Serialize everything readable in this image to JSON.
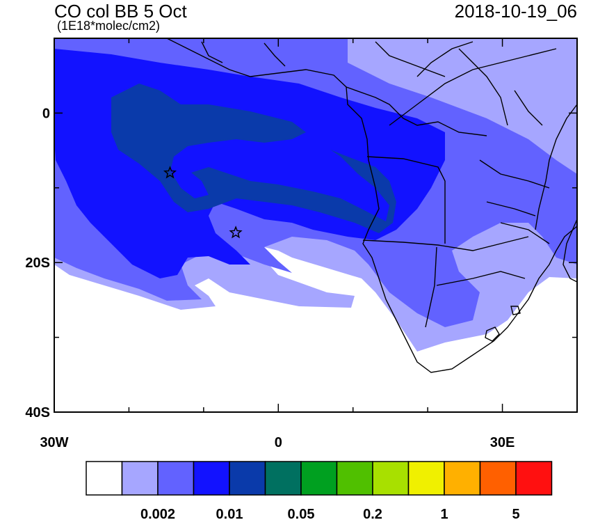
{
  "header": {
    "title": "CO col BB 5 Oct",
    "units": "(1E18*molec/cm2)",
    "timestamp": "2018-10-19_06"
  },
  "axes": {
    "lon_ticks": [
      {
        "value": -30,
        "label": "30W"
      },
      {
        "value": 0,
        "label": "0"
      },
      {
        "value": 30,
        "label": "30E"
      }
    ],
    "lat_ticks": [
      {
        "value": 0,
        "label": "0"
      },
      {
        "value": -20,
        "label": "20S"
      },
      {
        "value": -40,
        "label": "40S"
      }
    ],
    "lon_range": [
      -30,
      40
    ],
    "lat_range": [
      -40,
      10
    ]
  },
  "colorbar": {
    "colors": [
      "#ffffff",
      "#a6a6ff",
      "#6262ff",
      "#1212ff",
      "#0a3aaa",
      "#007060",
      "#00a020",
      "#50c000",
      "#a8e000",
      "#f0f000",
      "#ffb000",
      "#ff6000",
      "#ff1010"
    ],
    "labels": [
      {
        "after_box": 2,
        "text": "0.002"
      },
      {
        "after_box": 4,
        "text": "0.01"
      },
      {
        "after_box": 6,
        "text": "0.05"
      },
      {
        "after_box": 8,
        "text": "0.2"
      },
      {
        "after_box": 10,
        "text": "1"
      },
      {
        "after_box": 12,
        "text": "5"
      }
    ]
  },
  "markers": [
    {
      "type": "star",
      "lon": -14.5,
      "lat": -8
    },
    {
      "type": "star",
      "lon": -5.7,
      "lat": -16
    }
  ]
}
